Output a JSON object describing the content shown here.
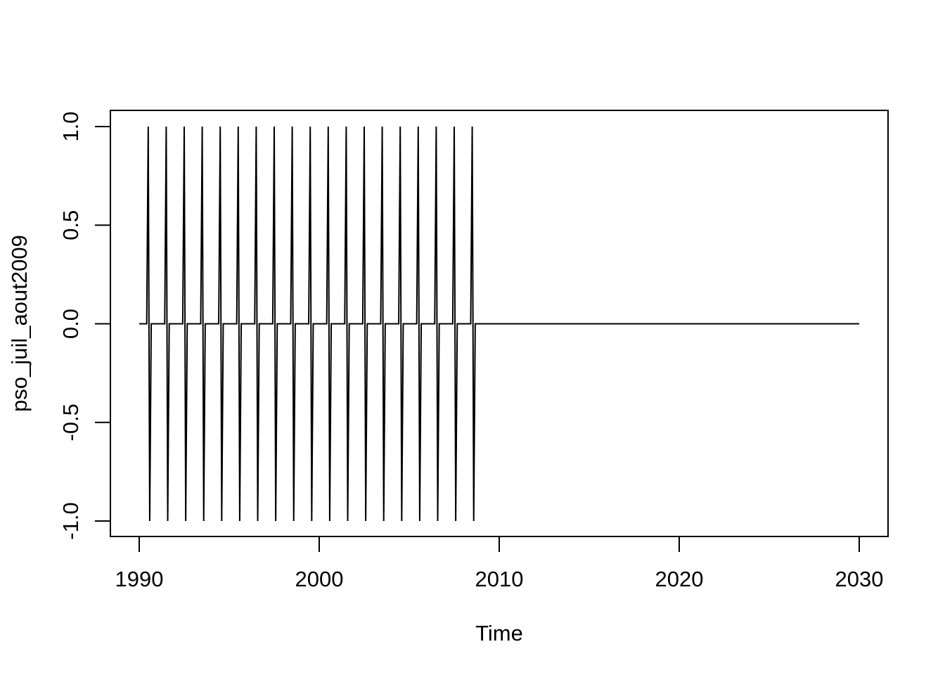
{
  "chart_data": {
    "type": "line",
    "title": "",
    "xlabel": "Time",
    "ylabel": "pso_juil_aout2009",
    "xlim": [
      1990,
      2030
    ],
    "ylim": [
      -1.0,
      1.0
    ],
    "x_ticks": [
      1990,
      2000,
      2010,
      2020,
      2030
    ],
    "x_tick_labels": [
      "1990",
      "2000",
      "2010",
      "2020",
      "2030"
    ],
    "y_ticks": [
      -1.0,
      -0.5,
      0.0,
      0.5,
      1.0
    ],
    "y_tick_labels": [
      "-1.0",
      "-0.5",
      "0.0",
      "0.5",
      "1.0"
    ],
    "grid": false,
    "series": [
      {
        "name": "pso_juil_aout2009",
        "frequency": 12,
        "start": 1990.0,
        "end": 2030.0,
        "color": "#000000",
        "description_of_values": "monthly series: 1.0 in July, -1.0 in August for years 1990-2008, 0.0 otherwise",
        "july_value": 1.0,
        "august_value": -1.0,
        "other_value": 0.0,
        "pulse_years": [
          1990,
          1991,
          1992,
          1993,
          1994,
          1995,
          1996,
          1997,
          1998,
          1999,
          2000,
          2001,
          2002,
          2003,
          2004,
          2005,
          2006,
          2007,
          2008
        ]
      }
    ]
  }
}
